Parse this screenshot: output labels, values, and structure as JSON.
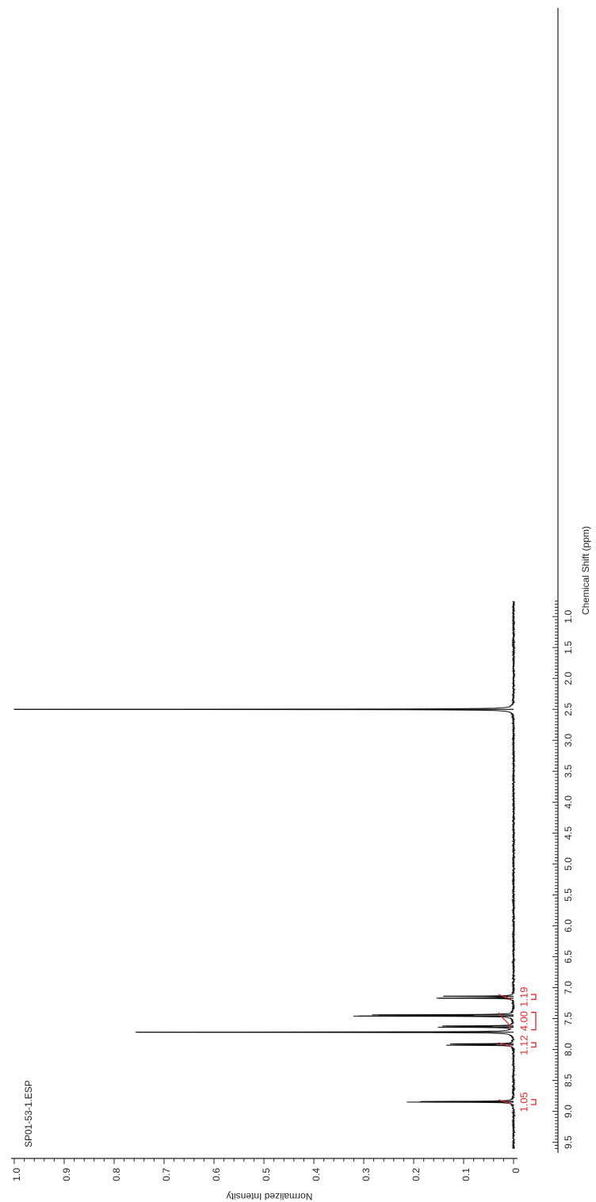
{
  "chart_data": {
    "type": "line",
    "title": "SP01-53-1.ESP",
    "xlabel": "Chemical Shift (ppm)",
    "ylabel": "Normalized Intensity",
    "x_range": [
      9.6,
      0.75
    ],
    "x_reversed": true,
    "ylim": [
      0,
      1.0
    ],
    "x_ticks": [
      "9.5",
      "9.0",
      "8.5",
      "8.0",
      "7.5",
      "7.0",
      "6.5",
      "6.0",
      "5.5",
      "5.0",
      "4.5",
      "4.0",
      "3.5",
      "3.0",
      "2.5",
      "2.0",
      "1.5",
      "1.0"
    ],
    "y_ticks": [
      "0",
      "0.1",
      "0.2",
      "0.3",
      "0.4",
      "0.5",
      "0.6",
      "0.7",
      "0.8",
      "0.9",
      "1.0"
    ],
    "series": [
      {
        "peaks": [
          {
            "x": 8.85,
            "y": 0.19
          },
          {
            "x": 8.84,
            "y": 0.16
          },
          {
            "x": 7.93,
            "y": 0.13
          },
          {
            "x": 7.91,
            "y": 0.12
          },
          {
            "x": 7.72,
            "y": 0.755
          },
          {
            "x": 7.64,
            "y": 0.145
          },
          {
            "x": 7.62,
            "y": 0.135
          },
          {
            "x": 7.46,
            "y": 0.31
          },
          {
            "x": 7.44,
            "y": 0.27
          },
          {
            "x": 7.17,
            "y": 0.15
          },
          {
            "x": 7.14,
            "y": 0.14
          },
          {
            "x": 2.5,
            "y": 1.0
          }
        ]
      }
    ],
    "integrals": [
      {
        "x": 8.85,
        "value": "1.05"
      },
      {
        "x": 7.93,
        "value": "1.12"
      },
      {
        "x": 7.54,
        "value": "4.00"
      },
      {
        "x": 7.15,
        "value": "1.19"
      }
    ],
    "colors": {
      "trace": "#111111",
      "integral": "#e0262a",
      "axis": "#222222"
    }
  }
}
